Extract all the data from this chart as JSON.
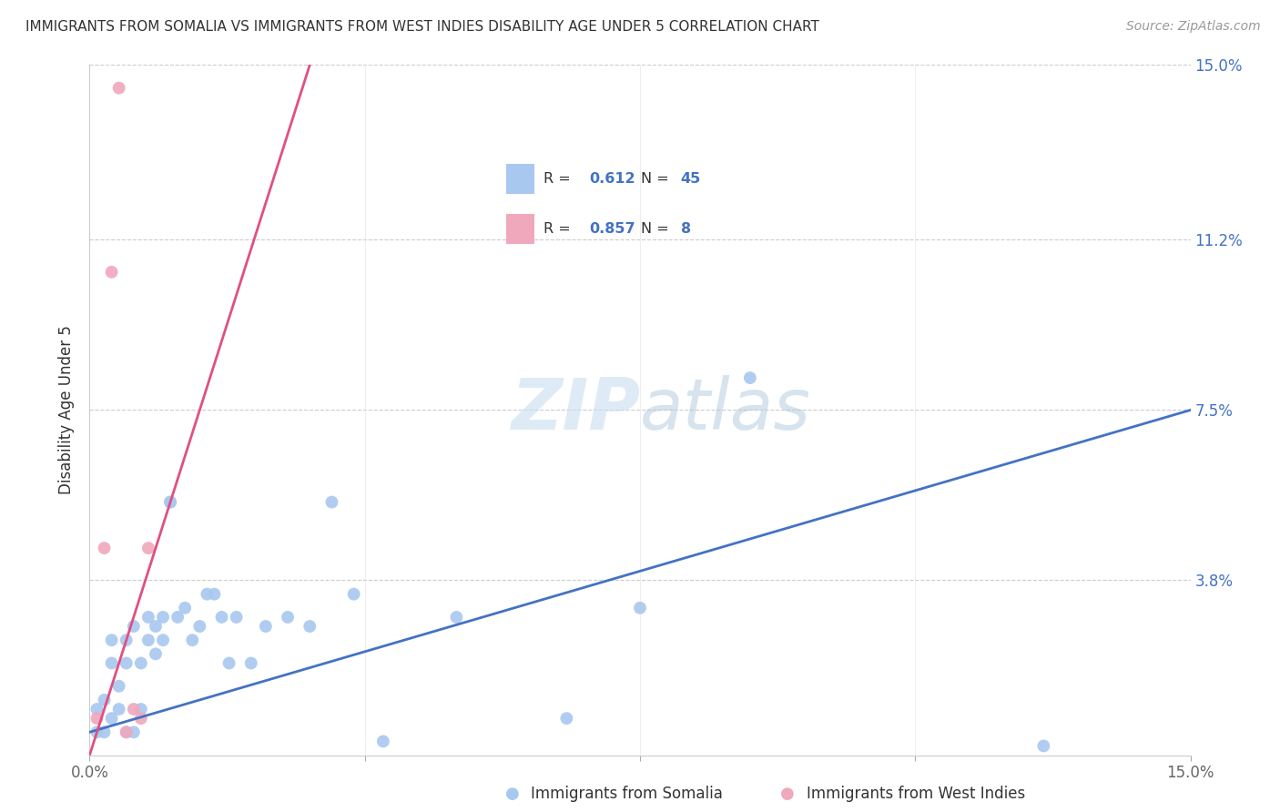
{
  "title": "IMMIGRANTS FROM SOMALIA VS IMMIGRANTS FROM WEST INDIES DISABILITY AGE UNDER 5 CORRELATION CHART",
  "source": "Source: ZipAtlas.com",
  "ylabel": "Disability Age Under 5",
  "xlabel_somalia": "Immigrants from Somalia",
  "xlabel_west_indies": "Immigrants from West Indies",
  "xlim": [
    0.0,
    0.15
  ],
  "ylim": [
    0.0,
    0.15
  ],
  "ytick_positions": [
    0.0,
    0.038,
    0.075,
    0.112,
    0.15
  ],
  "ytick_labels": [
    "",
    "3.8%",
    "7.5%",
    "11.2%",
    "15.0%"
  ],
  "xtick_positions": [
    0.0,
    0.0375,
    0.075,
    0.1125,
    0.15
  ],
  "xtick_labels": [
    "0.0%",
    "",
    "",
    "",
    "15.0%"
  ],
  "R_somalia": 0.612,
  "N_somalia": 45,
  "R_west_indies": 0.857,
  "N_west_indies": 8,
  "color_somalia": "#a8c8f0",
  "color_west_indies": "#f0a8bc",
  "line_color_somalia": "#4472C4",
  "line_color_west_indies": "#e05080",
  "somalia_x": [
    0.001,
    0.001,
    0.002,
    0.002,
    0.003,
    0.003,
    0.003,
    0.004,
    0.004,
    0.005,
    0.005,
    0.005,
    0.006,
    0.006,
    0.007,
    0.007,
    0.008,
    0.008,
    0.009,
    0.009,
    0.01,
    0.01,
    0.011,
    0.011,
    0.012,
    0.013,
    0.014,
    0.015,
    0.016,
    0.017,
    0.018,
    0.019,
    0.02,
    0.022,
    0.024,
    0.027,
    0.03,
    0.033,
    0.036,
    0.04,
    0.05,
    0.065,
    0.075,
    0.09,
    0.13
  ],
  "somalia_y": [
    0.01,
    0.005,
    0.012,
    0.005,
    0.025,
    0.02,
    0.008,
    0.015,
    0.01,
    0.005,
    0.02,
    0.025,
    0.005,
    0.028,
    0.02,
    0.01,
    0.03,
    0.025,
    0.028,
    0.022,
    0.03,
    0.025,
    0.055,
    0.055,
    0.03,
    0.032,
    0.025,
    0.028,
    0.035,
    0.035,
    0.03,
    0.02,
    0.03,
    0.02,
    0.028,
    0.03,
    0.028,
    0.055,
    0.035,
    0.003,
    0.03,
    0.008,
    0.032,
    0.082,
    0.002
  ],
  "west_indies_x": [
    0.001,
    0.002,
    0.003,
    0.004,
    0.005,
    0.006,
    0.007,
    0.008
  ],
  "west_indies_y": [
    0.008,
    0.045,
    0.105,
    0.145,
    0.005,
    0.01,
    0.008,
    0.045
  ],
  "somalia_line_x": [
    0.0,
    0.15
  ],
  "somalia_line_y": [
    0.005,
    0.075
  ],
  "west_indies_line_x": [
    0.0,
    0.03
  ],
  "west_indies_line_y": [
    0.0,
    0.15
  ]
}
